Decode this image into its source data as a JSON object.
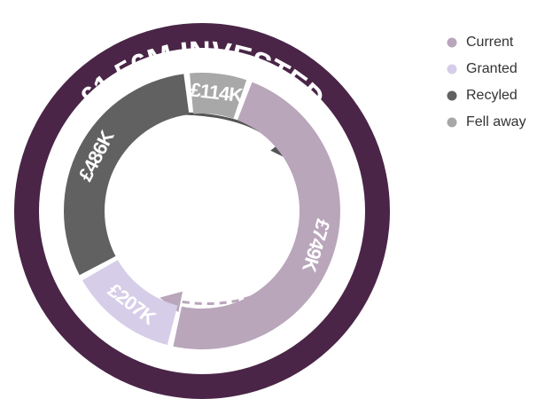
{
  "chart_data": {
    "type": "donut",
    "title": "£1.56M INVESTED",
    "categories": [
      "Current",
      "Granted",
      "Recyled",
      "Fell away"
    ],
    "values": [
      749,
      207,
      486,
      114
    ],
    "value_labels": [
      "£749K",
      "£207K",
      "£486K",
      "£114K"
    ],
    "colors": [
      "#b9a6bb",
      "#d6cde8",
      "#616161",
      "#a8a8a8"
    ],
    "legend": "top-right"
  }
}
